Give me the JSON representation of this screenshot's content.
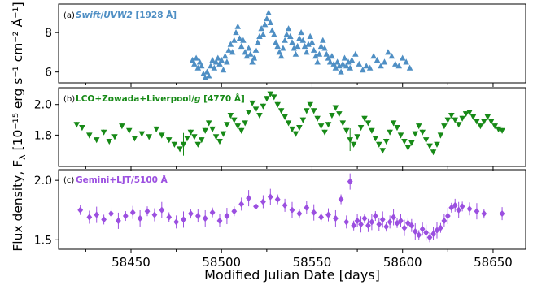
{
  "chart_data": {
    "type": "scatter",
    "xlabel": "Modified Julian Date [days]",
    "ylabel": "Flux density, F",
    "ylabel_subscript": "λ",
    "ylabel_units": "[10⁻¹⁵ erg s⁻¹ cm⁻² Å⁻¹]",
    "xlim": [
      58410,
      58668
    ],
    "xticks": [
      58450,
      58500,
      58550,
      58600,
      58650
    ],
    "xticklabels": [
      "58450",
      "58500",
      "58550",
      "58600",
      "58650"
    ],
    "panels": [
      {
        "label": "(a)",
        "title": "Swift/UVW2 [1928 Å]",
        "title_parts": [
          {
            "text": "Swift",
            "italic": true
          },
          {
            "text": "/",
            "italic": false
          },
          {
            "text": "UVW2",
            "italic": true
          },
          {
            "text": " [1928 Å]",
            "italic": false
          }
        ],
        "color": "#4f8fc4",
        "marker": "triangle-up",
        "ylim": [
          5.45,
          9.45
        ],
        "yticks": [
          6,
          8
        ],
        "yticklabels": [
          "6",
          "8"
        ],
        "x": [
          58484,
          58485,
          58486,
          58487,
          58488,
          58489,
          58490,
          58491,
          58492,
          58493,
          58494,
          58495,
          58496,
          58497,
          58498,
          58499,
          58500,
          58501,
          58502,
          58503,
          58504,
          58505,
          58506,
          58507,
          58508,
          58509,
          58510,
          58511,
          58512,
          58513,
          58514,
          58515,
          58516,
          58517,
          58518,
          58519,
          58520,
          58521,
          58522,
          58523,
          58524,
          58525,
          58526,
          58527,
          58528,
          58529,
          58530,
          58531,
          58532,
          58533,
          58534,
          58535,
          58536,
          58537,
          58538,
          58539,
          58540,
          58541,
          58542,
          58543,
          58544,
          58545,
          58546,
          58547,
          58548,
          58549,
          58550,
          58551,
          58552,
          58553,
          58554,
          58555,
          58556,
          58557,
          58558,
          58559,
          58560,
          58561,
          58562,
          58563,
          58564,
          58565,
          58566,
          58567,
          58568,
          58569,
          58570,
          58571,
          58572,
          58574,
          58576,
          58578,
          58580,
          58582,
          58584,
          58586,
          58588,
          58590,
          58592,
          58594,
          58596,
          58598,
          58600,
          58602,
          58604
        ],
        "y": [
          6.6,
          6.4,
          6.7,
          6.2,
          6.5,
          6.3,
          5.9,
          5.7,
          6.0,
          5.8,
          6.3,
          6.6,
          6.2,
          6.5,
          6.7,
          6.4,
          6.6,
          6.1,
          6.8,
          6.5,
          7.1,
          7.4,
          7.0,
          7.6,
          8.0,
          8.3,
          7.7,
          7.3,
          7.6,
          7.0,
          6.8,
          7.2,
          6.9,
          6.5,
          6.7,
          7.1,
          7.5,
          7.8,
          8.2,
          7.9,
          8.4,
          8.7,
          9.0,
          8.5,
          8.1,
          7.9,
          7.5,
          7.3,
          7.0,
          6.8,
          7.2,
          7.6,
          7.9,
          8.2,
          7.8,
          7.5,
          7.2,
          6.9,
          7.3,
          7.7,
          8.0,
          7.6,
          7.3,
          7.0,
          7.4,
          7.8,
          7.5,
          7.1,
          6.8,
          6.5,
          6.9,
          7.3,
          7.6,
          7.2,
          6.9,
          6.7,
          6.5,
          6.8,
          6.4,
          6.2,
          6.5,
          6.3,
          6.0,
          6.4,
          6.7,
          6.3,
          6.5,
          6.2,
          6.6,
          6.9,
          6.4,
          6.1,
          6.3,
          6.2,
          6.8,
          6.6,
          6.3,
          6.5,
          7.0,
          6.8,
          6.4,
          6.3,
          6.7,
          6.5,
          6.2
        ]
      },
      {
        "label": "(b)",
        "title": "LCO+Zowada+Liverpool/g [4770 Å]",
        "title_parts": [
          {
            "text": "LCO+Zowada+Liverpool/",
            "italic": false
          },
          {
            "text": "g",
            "italic": true
          },
          {
            "text": " [4770 Å]",
            "italic": false
          }
        ],
        "color": "#178a17",
        "marker": "triangle-down",
        "ylim": [
          1.595,
          2.11
        ],
        "yticks": [
          1.8,
          2.0
        ],
        "yticklabels": [
          "1.8",
          "2.0"
        ],
        "x": [
          58420,
          58423,
          58427,
          58431,
          58435,
          58438,
          58441,
          58445,
          58449,
          58452,
          58456,
          58460,
          58464,
          58467,
          58471,
          58474,
          58477,
          58479,
          58481,
          58483,
          58485,
          58487,
          58489,
          58491,
          58493,
          58495,
          58497,
          58499,
          58501,
          58503,
          58505,
          58507,
          58509,
          58511,
          58513,
          58515,
          58517,
          58519,
          58521,
          58523,
          58525,
          58527,
          58529,
          58531,
          58533,
          58535,
          58537,
          58539,
          58541,
          58543,
          58545,
          58547,
          58549,
          58551,
          58553,
          58555,
          58557,
          58559,
          58561,
          58563,
          58565,
          58567,
          58569,
          58571,
          58573,
          58575,
          58577,
          58579,
          58581,
          58583,
          58585,
          58587,
          58589,
          58591,
          58593,
          58595,
          58597,
          58599,
          58601,
          58603,
          58605,
          58607,
          58609,
          58611,
          58613,
          58615,
          58617,
          58619,
          58621,
          58623,
          58625,
          58627,
          58629,
          58631,
          58633,
          58635,
          58637,
          58639,
          58641,
          58643,
          58645,
          58647,
          58649,
          58651,
          58653,
          58655
        ],
        "y": [
          1.87,
          1.85,
          1.8,
          1.77,
          1.82,
          1.76,
          1.79,
          1.86,
          1.83,
          1.78,
          1.81,
          1.79,
          1.84,
          1.8,
          1.77,
          1.74,
          1.71,
          1.74,
          1.78,
          1.82,
          1.79,
          1.74,
          1.77,
          1.83,
          1.88,
          1.84,
          1.79,
          1.76,
          1.81,
          1.87,
          1.93,
          1.9,
          1.86,
          1.83,
          1.88,
          1.95,
          2.01,
          1.97,
          1.93,
          1.99,
          2.04,
          2.07,
          2.05,
          2.0,
          1.96,
          1.92,
          1.88,
          1.84,
          1.81,
          1.85,
          1.9,
          1.96,
          2.0,
          1.96,
          1.91,
          1.86,
          1.82,
          1.87,
          1.93,
          1.98,
          1.94,
          1.88,
          1.83,
          1.77,
          1.74,
          1.79,
          1.85,
          1.91,
          1.88,
          1.83,
          1.78,
          1.74,
          1.7,
          1.76,
          1.82,
          1.88,
          1.85,
          1.8,
          1.76,
          1.72,
          1.75,
          1.81,
          1.86,
          1.82,
          1.77,
          1.73,
          1.69,
          1.74,
          1.8,
          1.86,
          1.9,
          1.93,
          1.9,
          1.87,
          1.91,
          1.94,
          1.95,
          1.92,
          1.89,
          1.86,
          1.89,
          1.92,
          1.89,
          1.86,
          1.84,
          1.83
        ],
        "yerr_large_at": [
          58437,
          58479,
          58571
        ]
      },
      {
        "label": "(c)",
        "title": "Gemini+LJT/5100 Å",
        "title_parts": [
          {
            "text": "Gemini+LJT/5100 Å",
            "italic": false
          }
        ],
        "color": "#9b4fe0",
        "marker": "diamond",
        "ylim": [
          1.42,
          2.09
        ],
        "yticks": [
          1.5,
          2.0
        ],
        "yticklabels": [
          "1.5",
          "2.0"
        ],
        "x": [
          58422,
          58427,
          58431,
          58435,
          58439,
          58443,
          58447,
          58451,
          58455,
          58459,
          58463,
          58467,
          58471,
          58475,
          58479,
          58483,
          58487,
          58491,
          58495,
          58499,
          58503,
          58507,
          58511,
          58515,
          58519,
          58523,
          58527,
          58531,
          58535,
          58539,
          58543,
          58547,
          58551,
          58555,
          58559,
          58563,
          58566,
          58569,
          58571,
          58573,
          58575,
          58577,
          58579,
          58581,
          58583,
          58585,
          58587,
          58589,
          58591,
          58593,
          58595,
          58597,
          58599,
          58601,
          58603,
          58605,
          58607,
          58609,
          58611,
          58613,
          58615,
          58617,
          58619,
          58621,
          58623,
          58625,
          58627,
          58629,
          58631,
          58633,
          58637,
          58641,
          58645,
          58655
        ],
        "y": [
          1.75,
          1.69,
          1.71,
          1.67,
          1.72,
          1.66,
          1.7,
          1.73,
          1.68,
          1.74,
          1.71,
          1.75,
          1.69,
          1.65,
          1.67,
          1.72,
          1.7,
          1.68,
          1.73,
          1.66,
          1.7,
          1.74,
          1.8,
          1.85,
          1.78,
          1.82,
          1.86,
          1.84,
          1.79,
          1.75,
          1.72,
          1.77,
          1.73,
          1.69,
          1.71,
          1.68,
          1.84,
          1.65,
          1.99,
          1.62,
          1.66,
          1.63,
          1.68,
          1.62,
          1.65,
          1.7,
          1.63,
          1.67,
          1.61,
          1.65,
          1.69,
          1.64,
          1.66,
          1.6,
          1.64,
          1.62,
          1.57,
          1.54,
          1.59,
          1.56,
          1.52,
          1.55,
          1.58,
          1.6,
          1.66,
          1.7,
          1.77,
          1.79,
          1.75,
          1.78,
          1.76,
          1.74,
          1.72,
          1.72
        ]
      }
    ]
  }
}
